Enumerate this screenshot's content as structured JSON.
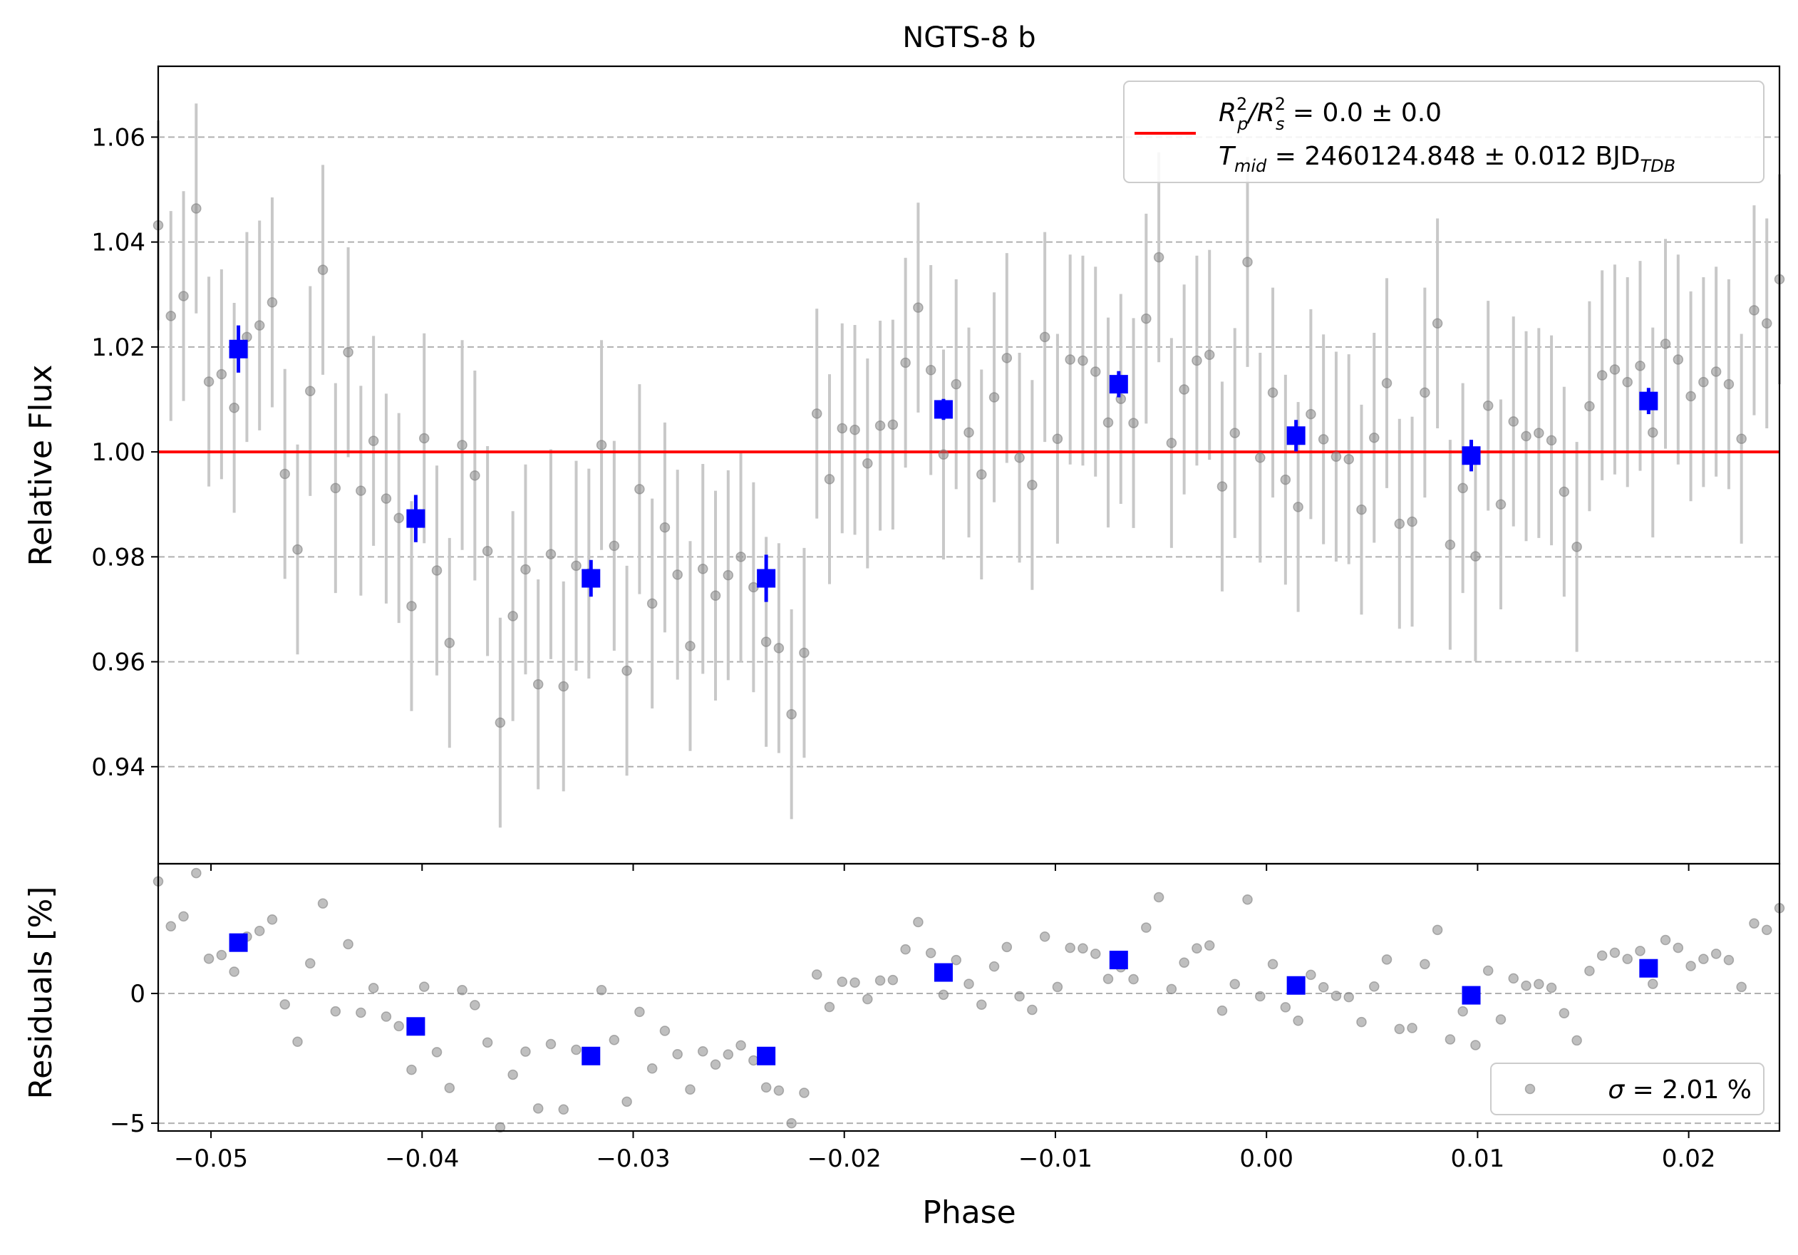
{
  "chart_data": [
    {
      "type": "scatter",
      "panel": "main",
      "title": "NGTS-8 b",
      "ylabel": "Relative Flux",
      "xlim": [
        -0.0525,
        0.0243
      ],
      "ylim": [
        0.9215,
        1.0735
      ],
      "x_ticks": [
        -0.05,
        -0.04,
        -0.03,
        -0.02,
        -0.01,
        0.0,
        0.01,
        0.02
      ],
      "y_ticks": [
        0.94,
        0.96,
        0.98,
        1.0,
        1.02,
        1.04,
        1.06
      ],
      "y_tick_labels": [
        "0.94",
        "0.96",
        "0.98",
        "1.00",
        "1.02",
        "1.04",
        "1.06"
      ],
      "grid": "horizontal dashed",
      "legend_position": "top-right",
      "legend": {
        "line1_prefix": "R",
        "line1_p_sub": "p",
        "line1_sup": "2",
        "line1_mid": "/R",
        "line1_s_sub": "s",
        "line1_value": " = 0.0 ± 0.0",
        "line2_prefix": "T",
        "line2_sub": "mid",
        "line2_value": " = 2460124.848 ± 0.012 BJD",
        "line2_unit_sub": "TDB"
      },
      "model_line": {
        "y": 1.0,
        "color": "#ff0000"
      },
      "raw_series": {
        "color": "#808080",
        "errorbar_color": "#c8c8c8",
        "x": [
          -0.0525,
          -0.0519,
          -0.0513,
          -0.0507,
          -0.0501,
          -0.0495,
          -0.0489,
          -0.0483,
          -0.0477,
          -0.0471,
          -0.0465,
          -0.0459,
          -0.0453,
          -0.0447,
          -0.0441,
          -0.0435,
          -0.0429,
          -0.0423,
          -0.0417,
          -0.0411,
          -0.0405,
          -0.0399,
          -0.0393,
          -0.0387,
          -0.0381,
          -0.0375,
          -0.0369,
          -0.0363,
          -0.0357,
          -0.0351,
          -0.0345,
          -0.0339,
          -0.0333,
          -0.0327,
          -0.0321,
          -0.0315,
          -0.0309,
          -0.0303,
          -0.0297,
          -0.0291,
          -0.0285,
          -0.0279,
          -0.0273,
          -0.0267,
          -0.0261,
          -0.0255,
          -0.0249,
          -0.0243,
          -0.0237,
          -0.0231,
          -0.0225,
          -0.0219,
          -0.0213,
          -0.0207,
          -0.0201,
          -0.0195,
          -0.0189,
          -0.0183,
          -0.0177,
          -0.0171,
          -0.0165,
          -0.0159,
          -0.0153,
          -0.0147,
          -0.0141,
          -0.0135,
          -0.0129,
          -0.0123,
          -0.0117,
          -0.0111,
          -0.0105,
          -0.0099,
          -0.0093,
          -0.0087,
          -0.0081,
          -0.0075,
          -0.0069,
          -0.0063,
          -0.0057,
          -0.0051,
          -0.0045,
          -0.0039,
          -0.0033,
          -0.0027,
          -0.0021,
          -0.0015,
          -0.0009,
          -0.0003,
          0.0003,
          0.0009,
          0.0015,
          0.0021,
          0.0027,
          0.0033,
          0.0039,
          0.0045,
          0.0051,
          0.0057,
          0.0063,
          0.0069,
          0.0075,
          0.0081,
          0.0087,
          0.0093,
          0.0099,
          0.0105,
          0.0111,
          0.0117,
          0.0123,
          0.0129,
          0.0135,
          0.0141,
          0.0147,
          0.0153,
          0.0159,
          0.0165,
          0.0171,
          0.0177,
          0.0183,
          0.0189,
          0.0195,
          0.0201,
          0.0207,
          0.0213,
          0.0219,
          0.0225,
          0.0231,
          0.0237,
          0.0243
        ],
        "y": [
          1.0432,
          1.0259,
          1.0297,
          1.0464,
          1.0134,
          1.0148,
          1.0084,
          1.0219,
          1.0241,
          1.0285,
          0.9958,
          0.9814,
          1.0116,
          1.0347,
          0.9931,
          1.019,
          0.9926,
          1.0021,
          0.9911,
          0.9874,
          0.9706,
          1.0026,
          0.9774,
          0.9636,
          1.0013,
          0.9955,
          0.9811,
          0.9484,
          0.9687,
          0.9776,
          0.9557,
          0.9805,
          0.9553,
          0.9783,
          0.9768,
          1.0013,
          0.9821,
          0.9583,
          0.9929,
          0.9711,
          0.9856,
          0.9766,
          0.963,
          0.9777,
          0.9726,
          0.9765,
          0.98,
          0.9742,
          0.9638,
          0.9626,
          0.95,
          0.9617,
          1.0073,
          0.9948,
          1.0045,
          1.0042,
          0.9978,
          1.005,
          1.0052,
          1.017,
          1.0275,
          1.0156,
          0.9995,
          1.0129,
          1.0037,
          0.9957,
          1.0104,
          1.0179,
          0.9989,
          0.9937,
          1.0219,
          1.0025,
          1.0176,
          1.0174,
          1.0153,
          1.0056,
          1.0101,
          1.0055,
          1.0254,
          1.0371,
          1.0017,
          1.0119,
          1.0174,
          1.0185,
          0.9934,
          1.0036,
          1.0362,
          0.9989,
          1.0113,
          0.9947,
          0.9895,
          1.0072,
          1.0024,
          0.9991,
          0.9986,
          0.989,
          1.0027,
          1.0131,
          0.9863,
          0.9867,
          1.0113,
          1.0245,
          0.9823,
          0.9931,
          0.9801,
          1.0088,
          0.99,
          1.0058,
          1.003,
          1.0036,
          1.0022,
          0.9924,
          0.9819,
          1.0087,
          1.0146,
          1.0157,
          1.0133,
          1.0164,
          1.0037,
          1.0206,
          1.0176,
          1.0106,
          1.0133,
          1.0153,
          1.0129,
          1.0025,
          1.027,
          1.0245,
          1.0329
        ],
        "yerr": 0.02
      },
      "binned_series": {
        "color": "#0000ff",
        "x": [
          -0.0487,
          -0.0403,
          -0.032,
          -0.0237,
          -0.0153,
          -0.007,
          0.0014,
          0.0097,
          0.0181
        ],
        "y": [
          1.0196,
          0.9873,
          0.9759,
          0.9759,
          1.0081,
          1.0129,
          1.0031,
          0.9993,
          1.0097
        ],
        "yerr": [
          0.0045,
          0.0045,
          0.0035,
          0.0045,
          0.002,
          0.0025,
          0.003,
          0.003,
          0.0025
        ]
      }
    },
    {
      "type": "scatter",
      "panel": "residuals",
      "xlabel": "Phase",
      "ylabel": "Residuals [%]",
      "xlim": [
        -0.0525,
        0.0243
      ],
      "ylim": [
        -5.3,
        5.0
      ],
      "x_tick_labels": [
        "−0.05",
        "−0.04",
        "−0.03",
        "−0.02",
        "−0.01",
        "0.00",
        "0.01",
        "0.02"
      ],
      "y_ticks": [
        -5,
        0
      ],
      "y_tick_labels": [
        "−5",
        "0"
      ],
      "grid": "horizontal dashed",
      "legend_position": "bottom-right",
      "legend": {
        "sigma_symbol": "σ",
        "sigma_value": " = 2.01 %"
      },
      "raw_residuals": {
        "color": "#808080",
        "x": [
          -0.0525,
          -0.0519,
          -0.0513,
          -0.0507,
          -0.0501,
          -0.0495,
          -0.0489,
          -0.0483,
          -0.0477,
          -0.0471,
          -0.0465,
          -0.0459,
          -0.0453,
          -0.0447,
          -0.0441,
          -0.0435,
          -0.0429,
          -0.0423,
          -0.0417,
          -0.0411,
          -0.0405,
          -0.0399,
          -0.0393,
          -0.0387,
          -0.0381,
          -0.0375,
          -0.0369,
          -0.0363,
          -0.0357,
          -0.0351,
          -0.0345,
          -0.0339,
          -0.0333,
          -0.0327,
          -0.0321,
          -0.0315,
          -0.0309,
          -0.0303,
          -0.0297,
          -0.0291,
          -0.0285,
          -0.0279,
          -0.0273,
          -0.0267,
          -0.0261,
          -0.0255,
          -0.0249,
          -0.0243,
          -0.0237,
          -0.0231,
          -0.0225,
          -0.0219,
          -0.0213,
          -0.0207,
          -0.0201,
          -0.0195,
          -0.0189,
          -0.0183,
          -0.0177,
          -0.0171,
          -0.0165,
          -0.0159,
          -0.0153,
          -0.0147,
          -0.0141,
          -0.0135,
          -0.0129,
          -0.0123,
          -0.0117,
          -0.0111,
          -0.0105,
          -0.0099,
          -0.0093,
          -0.0087,
          -0.0081,
          -0.0075,
          -0.0069,
          -0.0063,
          -0.0057,
          -0.0051,
          -0.0045,
          -0.0039,
          -0.0033,
          -0.0027,
          -0.0021,
          -0.0015,
          -0.0009,
          -0.0003,
          0.0003,
          0.0009,
          0.0015,
          0.0021,
          0.0027,
          0.0033,
          0.0039,
          0.0045,
          0.0051,
          0.0057,
          0.0063,
          0.0069,
          0.0075,
          0.0081,
          0.0087,
          0.0093,
          0.0099,
          0.0105,
          0.0111,
          0.0117,
          0.0123,
          0.0129,
          0.0135,
          0.0141,
          0.0147,
          0.0153,
          0.0159,
          0.0165,
          0.0171,
          0.0177,
          0.0183,
          0.0189,
          0.0195,
          0.0201,
          0.0207,
          0.0213,
          0.0219,
          0.0225,
          0.0231,
          0.0237,
          0.0243
        ],
        "y": [
          4.32,
          2.59,
          2.97,
          4.64,
          1.34,
          1.48,
          0.84,
          2.19,
          2.41,
          2.85,
          -0.42,
          -1.86,
          1.16,
          3.47,
          -0.69,
          1.9,
          -0.74,
          0.21,
          -0.89,
          -1.26,
          -2.94,
          0.26,
          -2.26,
          -3.64,
          0.13,
          -0.45,
          -1.89,
          -5.16,
          -3.13,
          -2.24,
          -4.43,
          -1.95,
          -4.47,
          -2.17,
          -2.32,
          0.13,
          -1.79,
          -4.17,
          -0.71,
          -2.89,
          -1.44,
          -2.34,
          -3.7,
          -2.23,
          -2.74,
          -2.35,
          -2.0,
          -2.58,
          -3.62,
          -3.74,
          -5.0,
          -3.83,
          0.73,
          -0.52,
          0.45,
          0.42,
          -0.22,
          0.5,
          0.52,
          1.7,
          2.75,
          1.56,
          -0.05,
          1.29,
          0.37,
          -0.43,
          1.04,
          1.79,
          -0.11,
          -0.63,
          2.19,
          0.25,
          1.76,
          1.74,
          1.53,
          0.56,
          1.01,
          0.55,
          2.54,
          3.71,
          0.17,
          1.19,
          1.74,
          1.85,
          -0.66,
          0.36,
          3.62,
          -0.11,
          1.13,
          -0.53,
          -1.05,
          0.72,
          0.24,
          -0.09,
          -0.14,
          -1.1,
          0.27,
          1.31,
          -1.37,
          -1.33,
          1.13,
          2.45,
          -1.77,
          -0.69,
          -1.99,
          0.88,
          -1.0,
          0.58,
          0.3,
          0.36,
          0.22,
          -0.76,
          -1.81,
          0.87,
          1.46,
          1.57,
          1.33,
          1.64,
          0.37,
          2.06,
          1.76,
          1.06,
          1.33,
          1.53,
          1.29,
          0.25,
          2.7,
          2.45,
          3.29
        ]
      },
      "binned_residuals": {
        "color": "#0000ff",
        "x": [
          -0.0487,
          -0.0403,
          -0.032,
          -0.0237,
          -0.0153,
          -0.007,
          0.0014,
          0.0097,
          0.0181
        ],
        "y": [
          1.96,
          -1.27,
          -2.41,
          -2.41,
          0.81,
          1.29,
          0.31,
          -0.07,
          0.97
        ]
      }
    }
  ]
}
